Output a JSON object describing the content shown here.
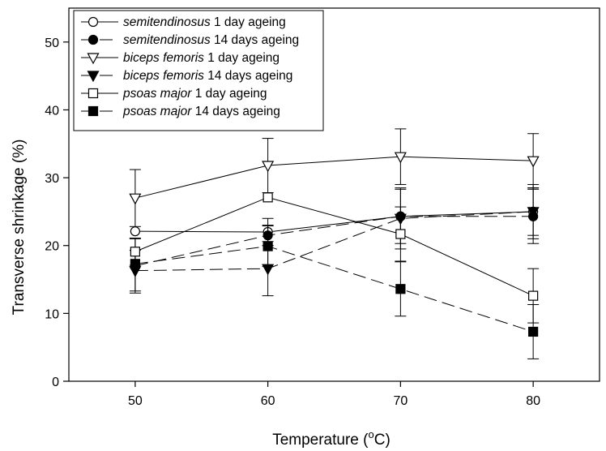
{
  "chart_data": {
    "type": "line",
    "xlabel": "Temperature (",
    "xlabel_sup": "o",
    "xlabel_unit": "C)",
    "ylabel": "Transverse shrinkage (%)",
    "x": [
      50,
      60,
      70,
      80
    ],
    "xlim": [
      45,
      85
    ],
    "ylim": [
      0,
      55
    ],
    "xticks": [
      50,
      60,
      70,
      80
    ],
    "yticks": [
      0,
      10,
      20,
      30,
      40,
      50
    ],
    "grid": false,
    "legend_position": "top-left",
    "series": [
      {
        "name_italic": "semitendinosus",
        "name_rest": " 1 day ageing",
        "marker": "circle-open",
        "line": "solid",
        "values": [
          22.1,
          22.0,
          24.3,
          25.0
        ],
        "errors": [
          null,
          2.0,
          null,
          3.5
        ]
      },
      {
        "name_italic": "semitendinosus",
        "name_rest": " 14 days ageing",
        "marker": "circle-filled",
        "line": "dashed",
        "values": [
          17.0,
          21.5,
          24.3,
          24.3
        ],
        "errors": [
          4.0,
          1.5,
          4.0,
          4.0
        ]
      },
      {
        "name_italic": "biceps femoris",
        "name_rest": " 1 day ageing",
        "marker": "triangle-down-open",
        "line": "solid",
        "values": [
          27.0,
          31.8,
          33.1,
          32.5
        ],
        "errors": [
          4.2,
          4.0,
          4.1,
          4.0
        ]
      },
      {
        "name_italic": "biceps femoris",
        "name_rest": " 14 days ageing",
        "marker": "triangle-down-filled",
        "line": "dashed",
        "values": [
          16.3,
          16.6,
          24.0,
          25.0
        ],
        "errors": [
          3.0,
          4.0,
          4.5,
          4.0
        ]
      },
      {
        "name_italic": "psoas major",
        "name_rest": " 1 day ageing",
        "marker": "square-open",
        "line": "solid",
        "values": [
          19.1,
          27.1,
          21.7,
          12.6
        ],
        "errors": [
          2.0,
          null,
          4.0,
          4.0
        ]
      },
      {
        "name_italic": "psoas major",
        "name_rest": " 14 days ageing",
        "marker": "square-filled",
        "line": "dashed",
        "values": [
          17.3,
          19.9,
          13.6,
          7.3
        ],
        "errors": [
          null,
          3.0,
          4.0,
          4.0
        ]
      }
    ]
  }
}
